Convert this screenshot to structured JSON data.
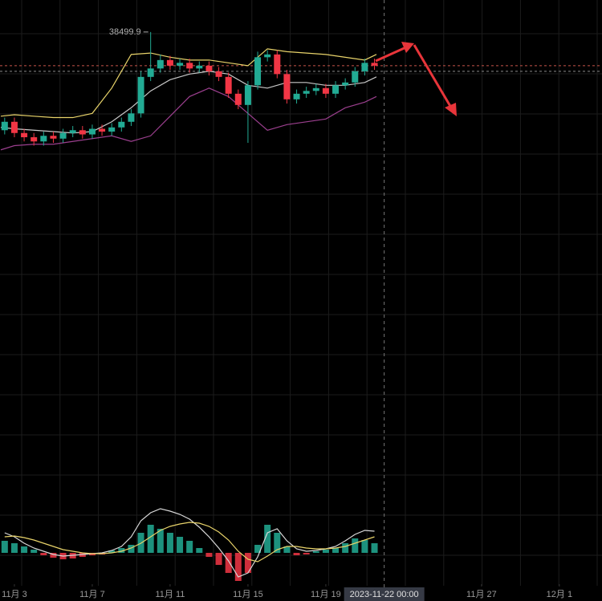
{
  "chart_data": {
    "type": "candlestick",
    "x": [
      2.5,
      3,
      3.5,
      4,
      4.5,
      5,
      5.5,
      6,
      6.5,
      7,
      7.5,
      8,
      8.5,
      9,
      9.5,
      10,
      10.5,
      11,
      11.5,
      12,
      12.5,
      13,
      13.5,
      14,
      14.5,
      15,
      15.5,
      16,
      16.5,
      17,
      17.5,
      18,
      18.5,
      19,
      19.5,
      20,
      20.5,
      21,
      21.5
    ],
    "open": [
      35000,
      35300,
      34900,
      34750,
      34600,
      34800,
      34700,
      34900,
      35000,
      34850,
      35050,
      34950,
      35100,
      35300,
      35600,
      36900,
      37200,
      37500,
      37300,
      37400,
      37200,
      37300,
      37100,
      36900,
      36300,
      35900,
      36600,
      37600,
      37700,
      37000,
      36100,
      36300,
      36400,
      36500,
      36300,
      36600,
      36700,
      37100,
      37400
    ],
    "high": [
      35450,
      35450,
      35050,
      34900,
      34950,
      34950,
      35050,
      35150,
      35150,
      35200,
      35200,
      35250,
      35450,
      35750,
      37100,
      38499.9,
      37700,
      37650,
      37550,
      37550,
      37450,
      37450,
      37250,
      37050,
      36450,
      36750,
      37800,
      37850,
      37850,
      37150,
      36450,
      36550,
      36650,
      36650,
      36750,
      36850,
      37250,
      37550,
      37550
    ],
    "low": [
      34850,
      34750,
      34600,
      34450,
      34450,
      34550,
      34550,
      34750,
      34700,
      34700,
      34800,
      34800,
      34950,
      35150,
      35450,
      36750,
      37050,
      37150,
      37150,
      37050,
      37050,
      36950,
      36750,
      36150,
      35750,
      34550,
      36450,
      37450,
      36850,
      35950,
      35950,
      36150,
      36250,
      36150,
      36150,
      36450,
      36550,
      36950,
      37150
    ],
    "close": [
      35300,
      34900,
      34750,
      34600,
      34800,
      34700,
      34900,
      35000,
      34850,
      35050,
      34950,
      35100,
      35300,
      35600,
      36900,
      37200,
      37500,
      37300,
      37400,
      37200,
      37300,
      37100,
      36900,
      36300,
      35900,
      36600,
      37600,
      37700,
      37000,
      36100,
      36300,
      36400,
      36500,
      36300,
      36600,
      36700,
      37100,
      37400,
      37300
    ],
    "up_color": "#22ab94",
    "down_color": "#f23645",
    "xlim": [
      2.26,
      33.19
    ],
    "ylim": [
      21340,
      39640
    ],
    "xticks": [
      {
        "value": 3,
        "label": "11月 3"
      },
      {
        "value": 7,
        "label": "11月 7"
      },
      {
        "value": 11,
        "label": "11月 11"
      },
      {
        "value": 15,
        "label": "11月 15"
      },
      {
        "value": 19,
        "label": "11月 19"
      },
      {
        "value": 27,
        "label": "11月 27"
      },
      {
        "value": 31,
        "label": "12月 1"
      }
    ],
    "crosshair": {
      "value": 22,
      "label": "2023-11-22 00:00"
    },
    "price_lines": [
      {
        "value": 37300,
        "color": "#c8554a"
      },
      {
        "value": 37100,
        "color": "#8a8a8a"
      }
    ],
    "band_x": [
      2.3,
      3,
      4,
      5,
      6,
      7,
      8,
      9,
      10,
      11,
      12,
      13,
      14,
      15,
      16,
      17,
      18,
      19,
      20,
      21,
      21.6
    ],
    "bands": [
      {
        "color": "#e8d36a",
        "values": [
          35500,
          35550,
          35500,
          35450,
          35450,
          35600,
          36500,
          37700,
          37750,
          37600,
          37500,
          37500,
          37400,
          37300,
          37900,
          37800,
          37750,
          37700,
          37600,
          37500,
          37700
        ]
      },
      {
        "color": "#c8c8c8",
        "values": [
          35100,
          35050,
          35000,
          34950,
          34900,
          34950,
          35300,
          35800,
          36400,
          36800,
          37000,
          37100,
          37000,
          36600,
          36500,
          36700,
          36700,
          36600,
          36600,
          36700,
          36900
        ]
      },
      {
        "color": "#9b3f8e",
        "values": [
          34300,
          34450,
          34500,
          34500,
          34600,
          34700,
          34800,
          34600,
          34800,
          35500,
          36200,
          36500,
          36200,
          35600,
          35000,
          35200,
          35300,
          35400,
          35800,
          36000,
          36200
        ]
      }
    ],
    "macd": {
      "ylim": [
        -490,
        530
      ],
      "histogram": [
        150,
        120,
        80,
        40,
        -30,
        -60,
        -80,
        -70,
        -50,
        -30,
        -20,
        30,
        60,
        100,
        250,
        350,
        300,
        250,
        200,
        150,
        60,
        -50,
        -150,
        -250,
        -350,
        -250,
        100,
        350,
        250,
        80,
        -30,
        -20,
        20,
        40,
        60,
        120,
        180,
        160,
        120
      ],
      "dif": [
        250,
        200,
        120,
        60,
        20,
        -20,
        -40,
        -30,
        -20,
        -10,
        0,
        30,
        80,
        200,
        400,
        500,
        550,
        520,
        480,
        420,
        320,
        200,
        60,
        -100,
        -300,
        -250,
        -50,
        250,
        300,
        150,
        50,
        20,
        30,
        50,
        80,
        150,
        230,
        280,
        270
      ],
      "dea": [
        200,
        210,
        190,
        160,
        120,
        80,
        40,
        20,
        0,
        -10,
        -10,
        0,
        20,
        60,
        120,
        200,
        280,
        330,
        360,
        380,
        370,
        330,
        260,
        160,
        20,
        -80,
        -110,
        -40,
        40,
        80,
        80,
        60,
        50,
        50,
        60,
        80,
        120,
        160,
        200
      ],
      "dif_color": "#d8d8d8",
      "dea_color": "#e8d36a"
    }
  }
}
